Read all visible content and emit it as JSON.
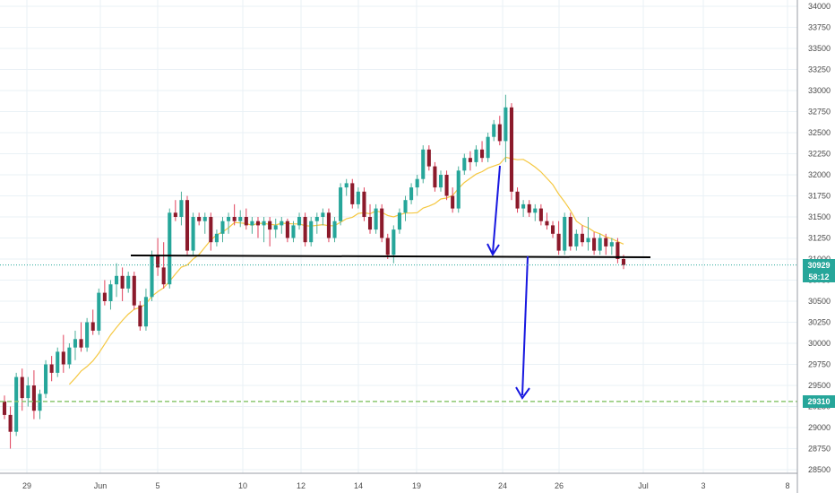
{
  "chart_data": {
    "type": "candlestick",
    "x_tick_labels": [
      "29",
      "Jun",
      "5",
      "10",
      "12",
      "14",
      "19",
      "24",
      "26",
      "Jul",
      "3",
      "8"
    ],
    "y_tick_labels": [
      28500,
      28750,
      29000,
      29250,
      29500,
      29750,
      30000,
      30250,
      30500,
      30750,
      31000,
      31250,
      31500,
      31750,
      32000,
      32250,
      32500,
      32750,
      33000,
      33250,
      33500,
      33750,
      34000
    ],
    "ylim": [
      28450,
      34050
    ],
    "grid": true,
    "price_tag": {
      "value": "30929",
      "countdown": "58:12"
    },
    "target_tag": {
      "value": "29310"
    },
    "support_level": 31050,
    "target_level": 29310,
    "close_price_level": 30929,
    "colors": {
      "up": "#26a69a",
      "down": "#8b1a2b",
      "wick_up": "#4caf9a",
      "wick_down": "#e0405a",
      "ma": "#f5c842",
      "support": "#000000",
      "arrow": "#1717e0",
      "tag": "#26a69a",
      "target_line": "#8cc870",
      "price_line": "#26a69a",
      "grid": "#eaf1f6"
    },
    "ohlc": [
      [
        29310,
        29380,
        29100,
        29150
      ],
      [
        29150,
        29250,
        28750,
        28950
      ],
      [
        28950,
        29650,
        28900,
        29600
      ],
      [
        29600,
        29700,
        29200,
        29350
      ],
      [
        29350,
        29600,
        29250,
        29500
      ],
      [
        29500,
        29680,
        29100,
        29200
      ],
      [
        29200,
        29450,
        29100,
        29400
      ],
      [
        29400,
        29800,
        29350,
        29750
      ],
      [
        29750,
        29850,
        29550,
        29650
      ],
      [
        29650,
        29950,
        29600,
        29900
      ],
      [
        29900,
        30100,
        29650,
        29750
      ],
      [
        29750,
        30000,
        29700,
        29950
      ],
      [
        29950,
        30150,
        29800,
        30050
      ],
      [
        30050,
        30250,
        29900,
        29950
      ],
      [
        29950,
        30300,
        29900,
        30250
      ],
      [
        30250,
        30400,
        30100,
        30150
      ],
      [
        30150,
        30650,
        30100,
        30600
      ],
      [
        30600,
        30750,
        30450,
        30500
      ],
      [
        30500,
        30750,
        30400,
        30700
      ],
      [
        30700,
        30950,
        30550,
        30800
      ],
      [
        30800,
        30900,
        30500,
        30650
      ],
      [
        30650,
        30850,
        30600,
        30800
      ],
      [
        30800,
        30850,
        30400,
        30450
      ],
      [
        30450,
        30500,
        30150,
        30200
      ],
      [
        30200,
        30650,
        30150,
        30550
      ],
      [
        30550,
        31100,
        30500,
        31050
      ],
      [
        31050,
        31250,
        30800,
        30900
      ],
      [
        30900,
        31200,
        30650,
        30700
      ],
      [
        30700,
        31600,
        30650,
        31550
      ],
      [
        31550,
        31700,
        31450,
        31500
      ],
      [
        31500,
        31800,
        31400,
        31700
      ],
      [
        31700,
        31750,
        31050,
        31100
      ],
      [
        31100,
        31550,
        31050,
        31500
      ],
      [
        31500,
        31550,
        31400,
        31450
      ],
      [
        31450,
        31550,
        31300,
        31500
      ],
      [
        31500,
        31550,
        31100,
        31200
      ],
      [
        31200,
        31350,
        31150,
        31300
      ],
      [
        31300,
        31500,
        31200,
        31450
      ],
      [
        31450,
        31550,
        31300,
        31500
      ],
      [
        31500,
        31650,
        31400,
        31450
      ],
      [
        31450,
        31580,
        31380,
        31500
      ],
      [
        31500,
        31600,
        31350,
        31400
      ],
      [
        31400,
        31500,
        31300,
        31450
      ],
      [
        31450,
        31500,
        31250,
        31400
      ],
      [
        31400,
        31500,
        31200,
        31450
      ],
      [
        31450,
        31500,
        31150,
        31350
      ],
      [
        31350,
        31480,
        31250,
        31400
      ],
      [
        31400,
        31500,
        31300,
        31450
      ],
      [
        31450,
        31480,
        31200,
        31250
      ],
      [
        31250,
        31450,
        31200,
        31400
      ],
      [
        31400,
        31550,
        31350,
        31500
      ],
      [
        31500,
        31550,
        31150,
        31200
      ],
      [
        31200,
        31500,
        31150,
        31450
      ],
      [
        31450,
        31550,
        31300,
        31500
      ],
      [
        31500,
        31600,
        31400,
        31550
      ],
      [
        31550,
        31600,
        31200,
        31250
      ],
      [
        31250,
        31500,
        31200,
        31450
      ],
      [
        31450,
        31900,
        31400,
        31850
      ],
      [
        31850,
        31950,
        31750,
        31900
      ],
      [
        31900,
        31950,
        31600,
        31650
      ],
      [
        31650,
        31850,
        31600,
        31800
      ],
      [
        31800,
        31850,
        31450,
        31500
      ],
      [
        31500,
        31650,
        31300,
        31350
      ],
      [
        31350,
        31650,
        31300,
        31600
      ],
      [
        31600,
        31650,
        31200,
        31250
      ],
      [
        31250,
        31300,
        31000,
        31050
      ],
      [
        31050,
        31400,
        30950,
        31350
      ],
      [
        31350,
        31600,
        31300,
        31550
      ],
      [
        31550,
        31750,
        31450,
        31700
      ],
      [
        31700,
        31900,
        31650,
        31850
      ],
      [
        31850,
        32000,
        31750,
        31950
      ],
      [
        31950,
        32350,
        31900,
        32300
      ],
      [
        32300,
        32350,
        32050,
        32100
      ],
      [
        32100,
        32150,
        31800,
        31850
      ],
      [
        31850,
        32050,
        31800,
        32000
      ],
      [
        32000,
        32050,
        31700,
        31750
      ],
      [
        31750,
        31850,
        31550,
        31600
      ],
      [
        31600,
        32100,
        31550,
        32050
      ],
      [
        32050,
        32250,
        32000,
        32200
      ],
      [
        32200,
        32280,
        32050,
        32150
      ],
      [
        32150,
        32350,
        32100,
        32300
      ],
      [
        32300,
        32400,
        32150,
        32200
      ],
      [
        32200,
        32500,
        32150,
        32450
      ],
      [
        32450,
        32650,
        32400,
        32600
      ],
      [
        32600,
        32700,
        32350,
        32400
      ],
      [
        32400,
        32950,
        32150,
        32800
      ],
      [
        32800,
        32850,
        31700,
        31800
      ],
      [
        31800,
        31850,
        31550,
        31600
      ],
      [
        31600,
        31700,
        31500,
        31650
      ],
      [
        31650,
        31700,
        31500,
        31550
      ],
      [
        31550,
        31650,
        31450,
        31600
      ],
      [
        31600,
        31650,
        31400,
        31450
      ],
      [
        31450,
        31550,
        31350,
        31400
      ],
      [
        31400,
        31450,
        31250,
        31300
      ],
      [
        31300,
        31450,
        31050,
        31100
      ],
      [
        31100,
        31550,
        31050,
        31500
      ],
      [
        31500,
        31550,
        31100,
        31150
      ],
      [
        31150,
        31350,
        31100,
        31300
      ],
      [
        31300,
        31400,
        31150,
        31200
      ],
      [
        31200,
        31500,
        31100,
        31250
      ],
      [
        31250,
        31320,
        31050,
        31100
      ],
      [
        31100,
        31300,
        31050,
        31250
      ],
      [
        31250,
        31300,
        31050,
        31150
      ],
      [
        31150,
        31250,
        31050,
        31200
      ],
      [
        31200,
        31250,
        30950,
        31000
      ],
      [
        31000,
        31050,
        30880,
        30929
      ]
    ]
  }
}
